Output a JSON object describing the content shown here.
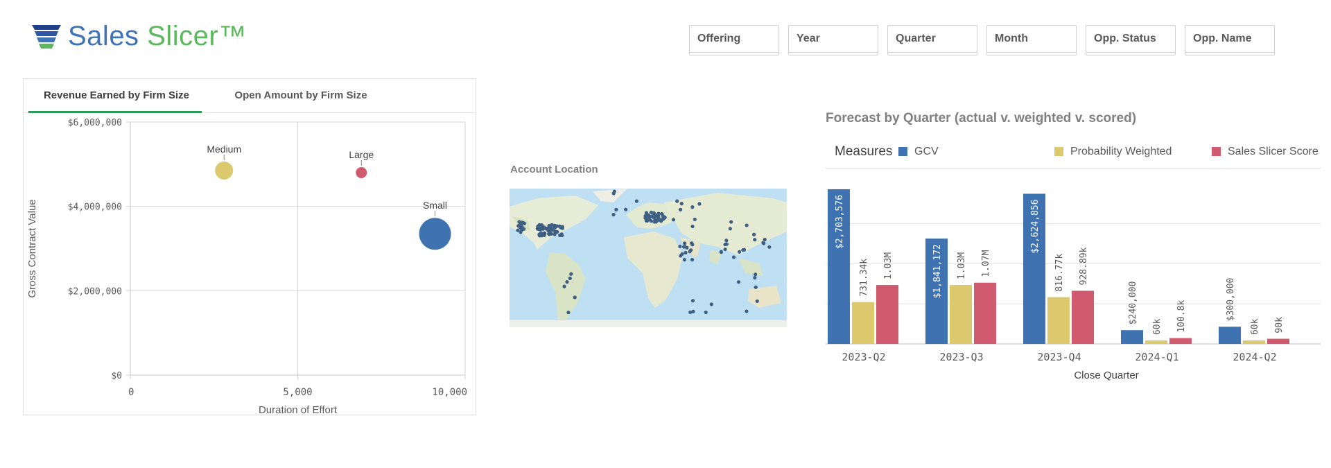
{
  "header": {
    "brand_part1": "Sales ",
    "brand_part2": "Slicer™",
    "filters": [
      "Offering",
      "Year",
      "Quarter",
      "Month",
      "Opp. Status",
      "Opp. Name"
    ]
  },
  "colors": {
    "blue": "#3f72b0",
    "yellow": "#dcc96e",
    "red": "#d05a6e",
    "green_accent": "#2b9a57"
  },
  "scatter_panel": {
    "tabs": [
      "Revenue Earned by Firm Size",
      "Open Amount by Firm Size"
    ],
    "active_tab": 0
  },
  "map": {
    "title": "Account Location"
  },
  "forecast": {
    "title": "Forecast by Quarter (actual v. weighted v. scored)",
    "legend_title": "Measures",
    "legend": [
      "GCV",
      "Probability Weighted",
      "Sales Slicer Score W"
    ]
  },
  "chart_data": [
    {
      "type": "scatter",
      "xlabel": "Duration of Effort",
      "ylabel": "Gross Contract Value",
      "xlim": [
        0,
        10000
      ],
      "ylim": [
        0,
        6000000
      ],
      "x_ticks": [
        "0",
        "5,000",
        "10,000"
      ],
      "y_ticks": [
        "$0",
        "$2,000,000",
        "$4,000,000",
        "$6,000,000"
      ],
      "grid": true,
      "points": [
        {
          "label": "Medium",
          "x": 2800,
          "y": 4850000,
          "size": "medium",
          "color": "#dcc96e"
        },
        {
          "label": "Large",
          "x": 6900,
          "y": 4800000,
          "size": "small",
          "color": "#d05a6e"
        },
        {
          "label": "Small",
          "x": 9100,
          "y": 3350000,
          "size": "large",
          "color": "#3f72b0"
        }
      ]
    },
    {
      "type": "bar",
      "title": "Forecast by Quarter (actual v. weighted v. scored)",
      "xlabel": "Close Quarter",
      "categories": [
        "2023-Q2",
        "2023-Q3",
        "2023-Q4",
        "2024-Q1",
        "2024-Q2"
      ],
      "ylim": [
        0,
        2800000
      ],
      "grid": true,
      "series": [
        {
          "name": "GCV",
          "color": "#3f72b0",
          "values": [
            2703576,
            1841172,
            2624856,
            240000,
            300000
          ],
          "labels": [
            "$2,703,576",
            "$1,841,172",
            "$2,624,856",
            "$240,000",
            "$300,000"
          ]
        },
        {
          "name": "Probability Weighted",
          "color": "#dcc96e",
          "values": [
            731340,
            1030000,
            816770,
            60000,
            60000
          ],
          "labels": [
            "731.34k",
            "1.03M",
            "816.77k",
            "60k",
            "60k"
          ]
        },
        {
          "name": "Sales Slicer Score W",
          "color": "#d05a6e",
          "values": [
            1030000,
            1070000,
            928890,
            100800,
            90000
          ],
          "labels": [
            "1.03M",
            "1.07M",
            "928.89k",
            "100.8k",
            "90k"
          ]
        }
      ]
    }
  ]
}
